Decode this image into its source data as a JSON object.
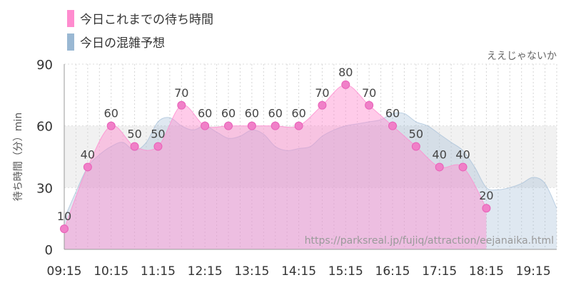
{
  "chart_data": {
    "type": "area",
    "ride_name": "ええじゃないか",
    "ylabel": "待ち時間（分）min",
    "ylim": [
      0,
      90
    ],
    "yticks": [
      0,
      30,
      60,
      90
    ],
    "x_tick_labels": [
      "09:15",
      "10:15",
      "11:15",
      "12:15",
      "13:15",
      "14:15",
      "15:15",
      "16:15",
      "17:15",
      "18:15",
      "19:15"
    ],
    "watermark": "https://parksreal.jp/fujiq/attraction/eejanaika.html",
    "grid": true,
    "series": [
      {
        "name": "今日これまでの待ち時間",
        "color": "#ff8ccf",
        "x": [
          "09:15",
          "09:45",
          "10:15",
          "10:45",
          "11:15",
          "11:45",
          "12:15",
          "12:45",
          "13:15",
          "13:45",
          "14:15",
          "14:45",
          "15:15",
          "15:45",
          "16:15",
          "16:45",
          "17:15",
          "17:45",
          "18:15"
        ],
        "values": [
          10,
          40,
          60,
          50,
          50,
          70,
          60,
          60,
          60,
          60,
          60,
          70,
          80,
          70,
          60,
          50,
          40,
          40,
          20
        ]
      },
      {
        "name": "今日の混雑予想",
        "color": "#9ab8d3",
        "x": [
          "09:15",
          "09:30",
          "09:45",
          "10:00",
          "10:15",
          "10:30",
          "10:45",
          "11:00",
          "11:15",
          "11:30",
          "11:45",
          "12:00",
          "12:15",
          "12:30",
          "12:45",
          "13:00",
          "13:15",
          "13:30",
          "13:45",
          "14:00",
          "14:15",
          "14:30",
          "14:45",
          "15:00",
          "15:15",
          "15:30",
          "15:45",
          "16:00",
          "16:15",
          "16:30",
          "16:45",
          "17:00",
          "17:15",
          "17:30",
          "17:45",
          "18:00",
          "18:15",
          "18:30",
          "18:45",
          "19:00",
          "19:15",
          "19:30",
          "19:45"
        ],
        "values": [
          15,
          28,
          40,
          46,
          50,
          52,
          48,
          52,
          62,
          64,
          60,
          58,
          60,
          57,
          54,
          55,
          58,
          56,
          50,
          48,
          49,
          50,
          55,
          58,
          60,
          61,
          62,
          63,
          66,
          66,
          62,
          60,
          56,
          52,
          48,
          40,
          30,
          29,
          30,
          32,
          35,
          32,
          20
        ]
      }
    ]
  }
}
